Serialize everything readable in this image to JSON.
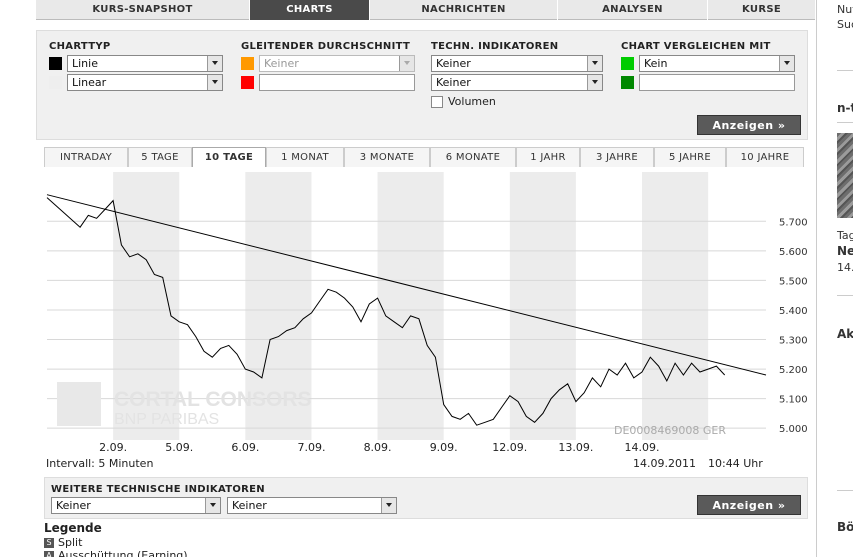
{
  "topnav": {
    "tabs": [
      {
        "label": "KURS-SNAPSHOT",
        "active": false
      },
      {
        "label": "CHARTS",
        "active": true
      },
      {
        "label": "NACHRICHTEN",
        "active": false
      },
      {
        "label": "ANALYSEN",
        "active": false
      },
      {
        "label": "KURSE",
        "active": false
      }
    ]
  },
  "settings": {
    "charttyp": {
      "title": "CHARTTYP",
      "type_value": "Linie",
      "scale_value": "Linear"
    },
    "gleitender": {
      "title": "GLEITENDER DURCHSCHNITT",
      "value": "Keiner"
    },
    "techn": {
      "title": "TECHN. INDIKATOREN",
      "value1": "Keiner",
      "value2": "Keiner",
      "volumen_label": "Volumen"
    },
    "vergleich": {
      "title": "CHART VERGLEICHEN MIT",
      "value": "Kein"
    },
    "colors": {
      "black": "#000000",
      "light": "#eeeeee",
      "orange": "#ff9900",
      "red": "#ff0000",
      "green": "#00cc00",
      "darkgreen": "#008800"
    },
    "show_button": "Anzeigen »"
  },
  "period_tabs": [
    {
      "label": "INTRADAY",
      "active": false
    },
    {
      "label": "5 TAGE",
      "active": false
    },
    {
      "label": "10 TAGE",
      "active": true
    },
    {
      "label": "1 MONAT",
      "active": false
    },
    {
      "label": "3 MONATE",
      "active": false
    },
    {
      "label": "6 MONATE",
      "active": false
    },
    {
      "label": "1 JAHR",
      "active": false
    },
    {
      "label": "3 JAHRE",
      "active": false
    },
    {
      "label": "5 JAHRE",
      "active": false
    },
    {
      "label": "10 JAHRE",
      "active": false
    }
  ],
  "chart_data": {
    "type": "line",
    "x_labels": [
      "2.09.",
      "5.09.",
      "6.09.",
      "7.09.",
      "8.09.",
      "9.09.",
      "12.09.",
      "13.09.",
      "14.09."
    ],
    "y_ticks": [
      "5.700",
      "5.600",
      "5.500",
      "5.400",
      "5.300",
      "5.200",
      "5.100",
      "5.000"
    ],
    "ylim": [
      4.96,
      5.86
    ],
    "x": [
      0,
      1,
      2,
      2.5,
      3,
      3.5,
      4,
      4.5,
      5,
      5.5,
      6,
      6.5,
      7,
      7.5,
      8,
      8.5,
      9,
      9.5,
      10,
      10.5,
      11,
      11.5,
      12,
      12.5,
      13,
      13.5,
      14,
      14.5,
      15,
      15.5,
      16,
      16.5,
      17,
      17.5,
      18,
      18.5,
      19,
      19.5,
      20,
      20.5,
      21,
      21.5,
      22,
      22.5,
      23,
      23.5,
      24,
      24.5,
      25,
      25.5,
      26,
      26.5,
      27,
      27.5,
      28,
      28.5,
      29,
      29.5,
      30,
      30.5,
      31,
      31.5,
      32,
      32.5,
      33,
      33.5,
      34,
      34.5,
      35,
      35.5,
      36,
      36.5,
      37,
      37.5,
      38,
      38.5,
      39,
      39.5,
      40,
      40.5,
      41
    ],
    "y": [
      5.78,
      5.73,
      5.68,
      5.72,
      5.71,
      5.74,
      5.77,
      5.62,
      5.58,
      5.59,
      5.57,
      5.52,
      5.51,
      5.38,
      5.36,
      5.35,
      5.31,
      5.26,
      5.24,
      5.27,
      5.28,
      5.25,
      5.2,
      5.19,
      5.17,
      5.3,
      5.31,
      5.33,
      5.34,
      5.37,
      5.39,
      5.43,
      5.47,
      5.46,
      5.44,
      5.41,
      5.36,
      5.42,
      5.44,
      5.38,
      5.36,
      5.34,
      5.38,
      5.37,
      5.28,
      5.24,
      5.08,
      5.04,
      5.03,
      5.05,
      5.01,
      5.02,
      5.03,
      5.07,
      5.11,
      5.09,
      5.04,
      5.02,
      5.05,
      5.1,
      5.13,
      5.15,
      5.09,
      5.12,
      5.17,
      5.14,
      5.2,
      5.18,
      5.22,
      5.17,
      5.19,
      5.24,
      5.21,
      5.16,
      5.22,
      5.18,
      5.22,
      5.19,
      5.2,
      5.21,
      5.18
    ],
    "trendline": [
      [
        0,
        5.79
      ],
      [
        43.5,
        5.18
      ]
    ],
    "xmax": 43.5,
    "shaded_days": [
      [
        4,
        8
      ],
      [
        12,
        16
      ],
      [
        20,
        24
      ],
      [
        28,
        32
      ],
      [
        36,
        40
      ]
    ],
    "isin_label": "DE0008469008 GER",
    "watermark": {
      "name": "CORTAL CONSORS",
      "sub": "BNP PARIBAS"
    }
  },
  "interval_label": "Intervall: 5 Minuten",
  "stamp": {
    "date": "14.09.2011",
    "time": "10:44 Uhr"
  },
  "lower": {
    "title": "WEITERE TECHNISCHE INDIKATOREN",
    "select1": "Keiner",
    "select2": "Keiner",
    "button": "Anzeigen »"
  },
  "legend": {
    "title": "Legende",
    "items": [
      {
        "icon": "S",
        "label": "Split"
      },
      {
        "icon": "A",
        "label": "Ausschüttung (Earning)"
      }
    ]
  },
  "sidebar": {
    "top1": "Nut",
    "top2": "Suc",
    "head1": "n-t",
    "cap1": "Tag",
    "cap2": "Ne",
    "cap3": "14.",
    "head2": "Ak",
    "head3": "Bö"
  }
}
